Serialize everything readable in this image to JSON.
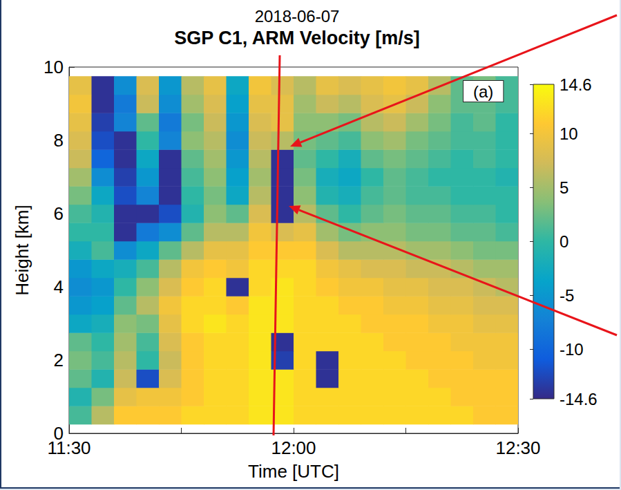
{
  "chart_data": {
    "type": "heatmap",
    "subtitle": "2018-06-07",
    "title": "SGP C1, ARM Velocity [m/s]",
    "annotation": "(a)",
    "x_label": "Time [UTC]",
    "y_label": "Height [km]",
    "x": [
      691.5,
      694.5,
      697.5,
      700.5,
      703.5,
      706.5,
      709.5,
      712.5,
      715.5,
      718.5,
      721.5,
      724.5,
      727.5,
      730.5,
      733.5,
      736.5,
      739.5,
      742.5,
      745.5,
      748.5
    ],
    "y": [
      0.5,
      1.0,
      1.5,
      2.0,
      2.5,
      3.0,
      3.5,
      4.0,
      4.5,
      5.0,
      5.5,
      6.0,
      6.5,
      7.0,
      7.5,
      8.0,
      8.5,
      9.0,
      9.5
    ],
    "values": [
      [
        1,
        6,
        11,
        11,
        11,
        12,
        12,
        12,
        13,
        13,
        12,
        12,
        12,
        12,
        12,
        12,
        12,
        12,
        11,
        11
      ],
      [
        -1,
        3,
        9,
        10,
        10,
        11,
        12,
        12,
        13,
        13,
        12,
        12,
        12,
        12,
        12,
        12,
        12,
        11,
        11,
        11
      ],
      [
        2,
        -1,
        7,
        -12,
        8,
        11,
        12,
        12,
        13,
        13,
        12,
        -14,
        12,
        12,
        12,
        12,
        11,
        11,
        11,
        11
      ],
      [
        3,
        1,
        6,
        0,
        7,
        11,
        12,
        12,
        13,
        -13,
        12,
        -14,
        12,
        12,
        12,
        11,
        11,
        11,
        10,
        10
      ],
      [
        2,
        0,
        5,
        1,
        8,
        11,
        12,
        12,
        13,
        -14,
        12,
        12,
        12,
        12,
        11,
        11,
        11,
        10,
        10,
        10
      ],
      [
        -3,
        -2,
        4,
        3,
        9,
        12,
        13,
        12,
        13,
        13,
        12,
        12,
        12,
        11,
        11,
        11,
        10,
        10,
        9,
        9
      ],
      [
        -5,
        -4,
        2,
        6,
        10,
        12,
        12,
        11,
        13,
        13,
        12,
        12,
        11,
        11,
        10,
        10,
        9,
        9,
        8,
        8
      ],
      [
        -6,
        -5,
        0,
        4,
        8,
        11,
        12,
        -14,
        12,
        13,
        12,
        11,
        10,
        10,
        9,
        9,
        8,
        8,
        7,
        6
      ],
      [
        -5,
        -3,
        -2,
        1,
        6,
        10,
        11,
        10,
        12,
        12,
        12,
        10,
        9,
        8,
        8,
        7,
        7,
        6,
        5,
        5
      ],
      [
        -2,
        1,
        -6,
        -3,
        2,
        6,
        9,
        9,
        11,
        11,
        11,
        8,
        6,
        6,
        6,
        5,
        5,
        4,
        3,
        3
      ],
      [
        0,
        0,
        -14,
        -8,
        -6,
        2,
        6,
        6,
        10,
        8,
        9,
        5,
        3,
        4,
        4,
        3,
        3,
        2,
        2,
        1
      ],
      [
        1,
        -1,
        -14,
        -14,
        -12,
        -1,
        4,
        2,
        8,
        -14,
        6,
        2,
        0,
        2,
        3,
        2,
        2,
        1,
        1,
        0
      ],
      [
        3,
        -3,
        -12,
        -7,
        -14,
        0,
        3,
        -3,
        6,
        -14,
        4,
        -1,
        -2,
        1,
        2,
        1,
        1,
        0,
        0,
        0
      ],
      [
        5,
        -6,
        -13,
        -5,
        -14,
        1,
        4,
        -4,
        5,
        -14,
        3,
        -2,
        -3,
        0,
        2,
        1,
        0,
        0,
        0,
        -1
      ],
      [
        7,
        -10,
        -14,
        -3,
        -14,
        2,
        5,
        -5,
        6,
        -14,
        2,
        0,
        -2,
        2,
        3,
        2,
        1,
        0,
        1,
        0
      ],
      [
        8,
        -12,
        -14,
        0,
        -7,
        4,
        6,
        -6,
        7,
        6,
        3,
        2,
        1,
        4,
        5,
        3,
        2,
        1,
        1,
        0
      ],
      [
        9,
        -13,
        -7,
        2,
        -8,
        3,
        7,
        -5,
        8,
        9,
        4,
        4,
        3,
        6,
        7,
        5,
        3,
        1,
        2,
        0
      ],
      [
        10,
        -14,
        -8,
        7,
        -6,
        5,
        8,
        -4,
        9,
        9,
        5,
        7,
        6,
        8,
        9,
        7,
        4,
        2,
        2,
        1
      ],
      [
        9,
        -14,
        -6,
        8,
        -5,
        6,
        9,
        -3,
        10,
        8,
        6,
        9,
        8,
        9,
        10,
        9,
        6,
        2,
        3,
        1
      ]
    ],
    "xlim": [
      690,
      750
    ],
    "xticks": [
      {
        "value": 690,
        "label": "11:30"
      },
      {
        "value": 720,
        "label": "12:00"
      },
      {
        "value": 750,
        "label": "12:30"
      }
    ],
    "ylim": [
      0,
      10
    ],
    "yticks": [
      0,
      2,
      4,
      6,
      8,
      10
    ],
    "colorbar": {
      "range": [
        -14.6,
        14.6
      ],
      "ticks": [
        -14.6,
        -10,
        -5,
        0,
        5,
        10,
        14.6
      ]
    }
  }
}
